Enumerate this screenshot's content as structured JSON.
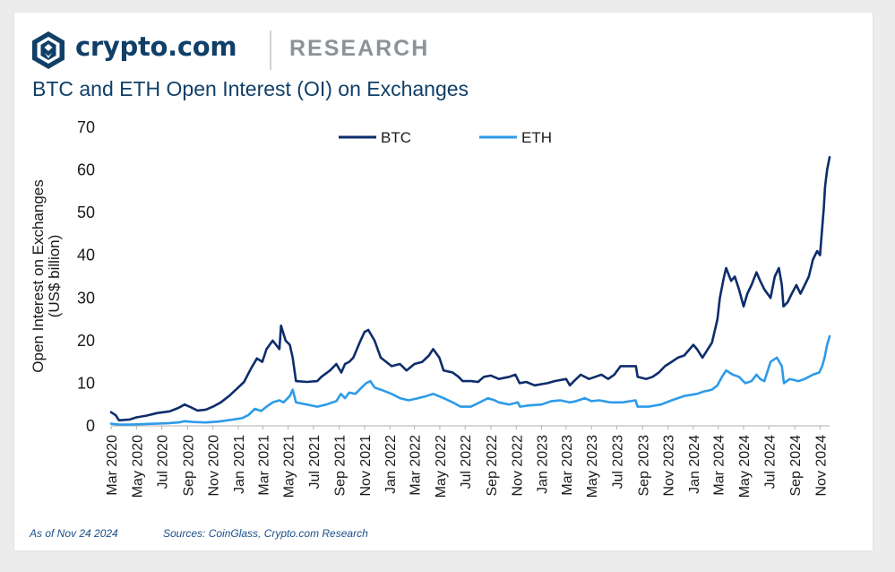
{
  "brand": {
    "name": "crypto.com",
    "section": "RESEARCH",
    "logo_icon": "crypto-com-lion-shield-icon"
  },
  "colors": {
    "brand_navy": "#103f68",
    "btc": "#0d2d6b",
    "eth": "#2e9be8",
    "footnote": "#1a4f8a"
  },
  "footer": {
    "date": "As of Nov 24 2024",
    "sources": "Sources: CoinGlass, Crypto.com Research"
  },
  "chart_data": {
    "type": "line",
    "title": "BTC and ETH Open Interest (OI) on Exchanges",
    "xlabel": "",
    "ylabel": [
      "Open Interest on Exchanges",
      "(US$ billion)"
    ],
    "ylim": [
      0,
      70
    ],
    "yticks": [
      0,
      10,
      20,
      30,
      40,
      50,
      60,
      70
    ],
    "x_range": [
      "2020-03-01",
      "2024-11-24"
    ],
    "x_tick_labels": [
      "Mar 2020",
      "May 2020",
      "Jul 2020",
      "Sep 2020",
      "Nov 2020",
      "Jan 2021",
      "Mar 2021",
      "May 2021",
      "Jul 2021",
      "Sep 2021",
      "Nov 2021",
      "Jan 2022",
      "Mar 2022",
      "May 2022",
      "Jul 2022",
      "Sep 2022",
      "Nov 2022",
      "Jan 2023",
      "Mar 2023",
      "May 2023",
      "Jul 2023",
      "Sep 2023",
      "Nov 2023",
      "Jan 2024",
      "Mar 2024",
      "May 2024",
      "Jul 2024",
      "Sep 2024",
      "Nov 2024"
    ],
    "grid": false,
    "legend_position": "top",
    "series": [
      {
        "name": "BTC",
        "x": [
          "2020-03-01",
          "2020-03-12",
          "2020-03-20",
          "2020-04-15",
          "2020-05-01",
          "2020-05-25",
          "2020-06-20",
          "2020-07-20",
          "2020-08-10",
          "2020-08-25",
          "2020-09-10",
          "2020-09-25",
          "2020-10-15",
          "2020-11-01",
          "2020-11-20",
          "2020-12-10",
          "2020-12-30",
          "2021-01-15",
          "2021-02-01",
          "2021-02-15",
          "2021-02-28",
          "2021-03-10",
          "2021-03-25",
          "2021-04-10",
          "2021-04-14",
          "2021-04-25",
          "2021-05-05",
          "2021-05-12",
          "2021-05-20",
          "2021-06-15",
          "2021-07-10",
          "2021-07-20",
          "2021-08-10",
          "2021-08-25",
          "2021-09-06",
          "2021-09-15",
          "2021-09-25",
          "2021-10-05",
          "2021-10-20",
          "2021-11-01",
          "2021-11-10",
          "2021-11-25",
          "2021-12-10",
          "2022-01-05",
          "2022-01-25",
          "2022-02-10",
          "2022-03-01",
          "2022-03-20",
          "2022-04-05",
          "2022-04-15",
          "2022-04-30",
          "2022-05-10",
          "2022-06-01",
          "2022-06-15",
          "2022-06-25",
          "2022-07-15",
          "2022-08-01",
          "2022-08-15",
          "2022-09-01",
          "2022-09-20",
          "2022-10-15",
          "2022-10-30",
          "2022-11-09",
          "2022-11-25",
          "2022-12-15",
          "2023-01-15",
          "2023-02-01",
          "2023-03-01",
          "2023-03-10",
          "2023-03-20",
          "2023-04-05",
          "2023-04-25",
          "2023-05-10",
          "2023-05-25",
          "2023-06-10",
          "2023-06-25",
          "2023-07-10",
          "2023-07-30",
          "2023-08-16",
          "2023-08-20",
          "2023-09-10",
          "2023-09-25",
          "2023-10-10",
          "2023-10-25",
          "2023-11-10",
          "2023-11-25",
          "2023-12-10",
          "2024-01-01",
          "2024-01-10",
          "2024-01-23",
          "2024-02-05",
          "2024-02-15",
          "2024-02-28",
          "2024-03-05",
          "2024-03-15",
          "2024-03-20",
          "2024-04-01",
          "2024-04-10",
          "2024-04-20",
          "2024-05-01",
          "2024-05-10",
          "2024-05-20",
          "2024-06-01",
          "2024-06-10",
          "2024-06-20",
          "2024-07-05",
          "2024-07-15",
          "2024-07-25",
          "2024-08-01",
          "2024-08-05",
          "2024-08-15",
          "2024-08-25",
          "2024-09-05",
          "2024-09-15",
          "2024-09-25",
          "2024-10-05",
          "2024-10-15",
          "2024-10-25",
          "2024-11-01",
          "2024-11-05",
          "2024-11-10",
          "2024-11-13",
          "2024-11-18",
          "2024-11-24"
        ],
        "values": [
          3.2,
          2.5,
          1.3,
          1.5,
          2.0,
          2.4,
          3.0,
          3.4,
          4.2,
          5.0,
          4.3,
          3.6,
          3.8,
          4.5,
          5.5,
          7.0,
          8.8,
          10.3,
          13.5,
          15.8,
          15.0,
          18.0,
          20.0,
          18.0,
          23.5,
          20.0,
          19.0,
          16.0,
          10.5,
          10.3,
          10.5,
          11.5,
          13.0,
          14.5,
          12.5,
          14.5,
          15.0,
          16.0,
          19.5,
          22.0,
          22.5,
          20.0,
          16.0,
          14.0,
          14.5,
          13.0,
          14.5,
          15.0,
          16.5,
          18.0,
          16.0,
          13.0,
          12.5,
          11.5,
          10.5,
          10.5,
          10.3,
          11.5,
          11.8,
          11.0,
          11.5,
          12.0,
          10.0,
          10.3,
          9.5,
          10.0,
          10.5,
          11.0,
          9.5,
          10.5,
          12.0,
          11.0,
          11.5,
          12.0,
          11.0,
          12.0,
          14.0,
          14.0,
          14.0,
          11.5,
          11.0,
          11.5,
          12.5,
          14.0,
          15.0,
          16.0,
          16.5,
          19.0,
          18.0,
          16.0,
          18.0,
          19.5,
          25.0,
          30.0,
          35.0,
          37.0,
          34.0,
          35.0,
          32.0,
          28.0,
          31.0,
          33.0,
          36.0,
          34.0,
          32.0,
          30.0,
          35.0,
          37.0,
          33.0,
          28.0,
          29.0,
          31.0,
          33.0,
          31.0,
          33.0,
          35.0,
          39.0,
          41.0,
          40.0,
          45.0,
          51.0,
          56.0,
          60.0,
          63.0
        ]
      },
      {
        "name": "ETH",
        "x": [
          "2020-03-01",
          "2020-03-20",
          "2020-04-15",
          "2020-05-15",
          "2020-06-15",
          "2020-07-15",
          "2020-08-10",
          "2020-08-25",
          "2020-09-15",
          "2020-10-15",
          "2020-11-15",
          "2020-12-15",
          "2021-01-10",
          "2021-01-25",
          "2021-02-10",
          "2021-02-25",
          "2021-03-10",
          "2021-03-25",
          "2021-04-10",
          "2021-04-20",
          "2021-05-05",
          "2021-05-12",
          "2021-05-20",
          "2021-06-15",
          "2021-07-10",
          "2021-08-01",
          "2021-08-25",
          "2021-09-05",
          "2021-09-15",
          "2021-09-25",
          "2021-10-10",
          "2021-10-25",
          "2021-11-05",
          "2021-11-15",
          "2021-11-25",
          "2021-12-10",
          "2022-01-05",
          "2022-01-25",
          "2022-02-15",
          "2022-03-10",
          "2022-03-30",
          "2022-04-15",
          "2022-05-10",
          "2022-06-01",
          "2022-06-20",
          "2022-07-15",
          "2022-08-05",
          "2022-08-25",
          "2022-09-10",
          "2022-09-20",
          "2022-10-15",
          "2022-11-05",
          "2022-11-10",
          "2022-12-01",
          "2023-01-01",
          "2023-01-25",
          "2023-02-15",
          "2023-03-10",
          "2023-03-25",
          "2023-04-15",
          "2023-05-01",
          "2023-05-20",
          "2023-06-15",
          "2023-07-15",
          "2023-08-15",
          "2023-08-20",
          "2023-09-15",
          "2023-10-15",
          "2023-11-10",
          "2023-12-10",
          "2024-01-10",
          "2024-01-25",
          "2024-02-15",
          "2024-02-28",
          "2024-03-10",
          "2024-03-20",
          "2024-04-05",
          "2024-04-20",
          "2024-05-05",
          "2024-05-20",
          "2024-06-01",
          "2024-06-10",
          "2024-06-20",
          "2024-07-05",
          "2024-07-20",
          "2024-08-01",
          "2024-08-06",
          "2024-08-20",
          "2024-09-10",
          "2024-09-25",
          "2024-10-15",
          "2024-10-30",
          "2024-11-06",
          "2024-11-12",
          "2024-11-18",
          "2024-11-24"
        ],
        "values": [
          0.5,
          0.3,
          0.3,
          0.4,
          0.5,
          0.6,
          0.8,
          1.1,
          0.9,
          0.8,
          1.0,
          1.4,
          1.8,
          2.5,
          4.0,
          3.5,
          4.5,
          5.5,
          6.0,
          5.5,
          7.0,
          8.5,
          5.5,
          5.0,
          4.5,
          5.0,
          5.8,
          7.5,
          6.5,
          7.8,
          7.5,
          9.0,
          10.0,
          10.5,
          9.0,
          8.5,
          7.5,
          6.5,
          6.0,
          6.5,
          7.0,
          7.5,
          6.5,
          5.5,
          4.5,
          4.5,
          5.5,
          6.5,
          6.0,
          5.5,
          5.0,
          5.5,
          4.5,
          4.8,
          5.0,
          5.8,
          6.0,
          5.5,
          5.8,
          6.5,
          5.8,
          6.0,
          5.5,
          5.5,
          6.0,
          4.5,
          4.5,
          5.0,
          6.0,
          7.0,
          7.5,
          8.0,
          8.5,
          9.5,
          11.5,
          13.0,
          12.0,
          11.5,
          10.0,
          10.5,
          12.0,
          11.0,
          10.5,
          15.0,
          16.0,
          14.0,
          10.0,
          11.0,
          10.5,
          11.0,
          12.0,
          12.5,
          14.0,
          16.0,
          19.0,
          21.0
        ]
      }
    ]
  }
}
